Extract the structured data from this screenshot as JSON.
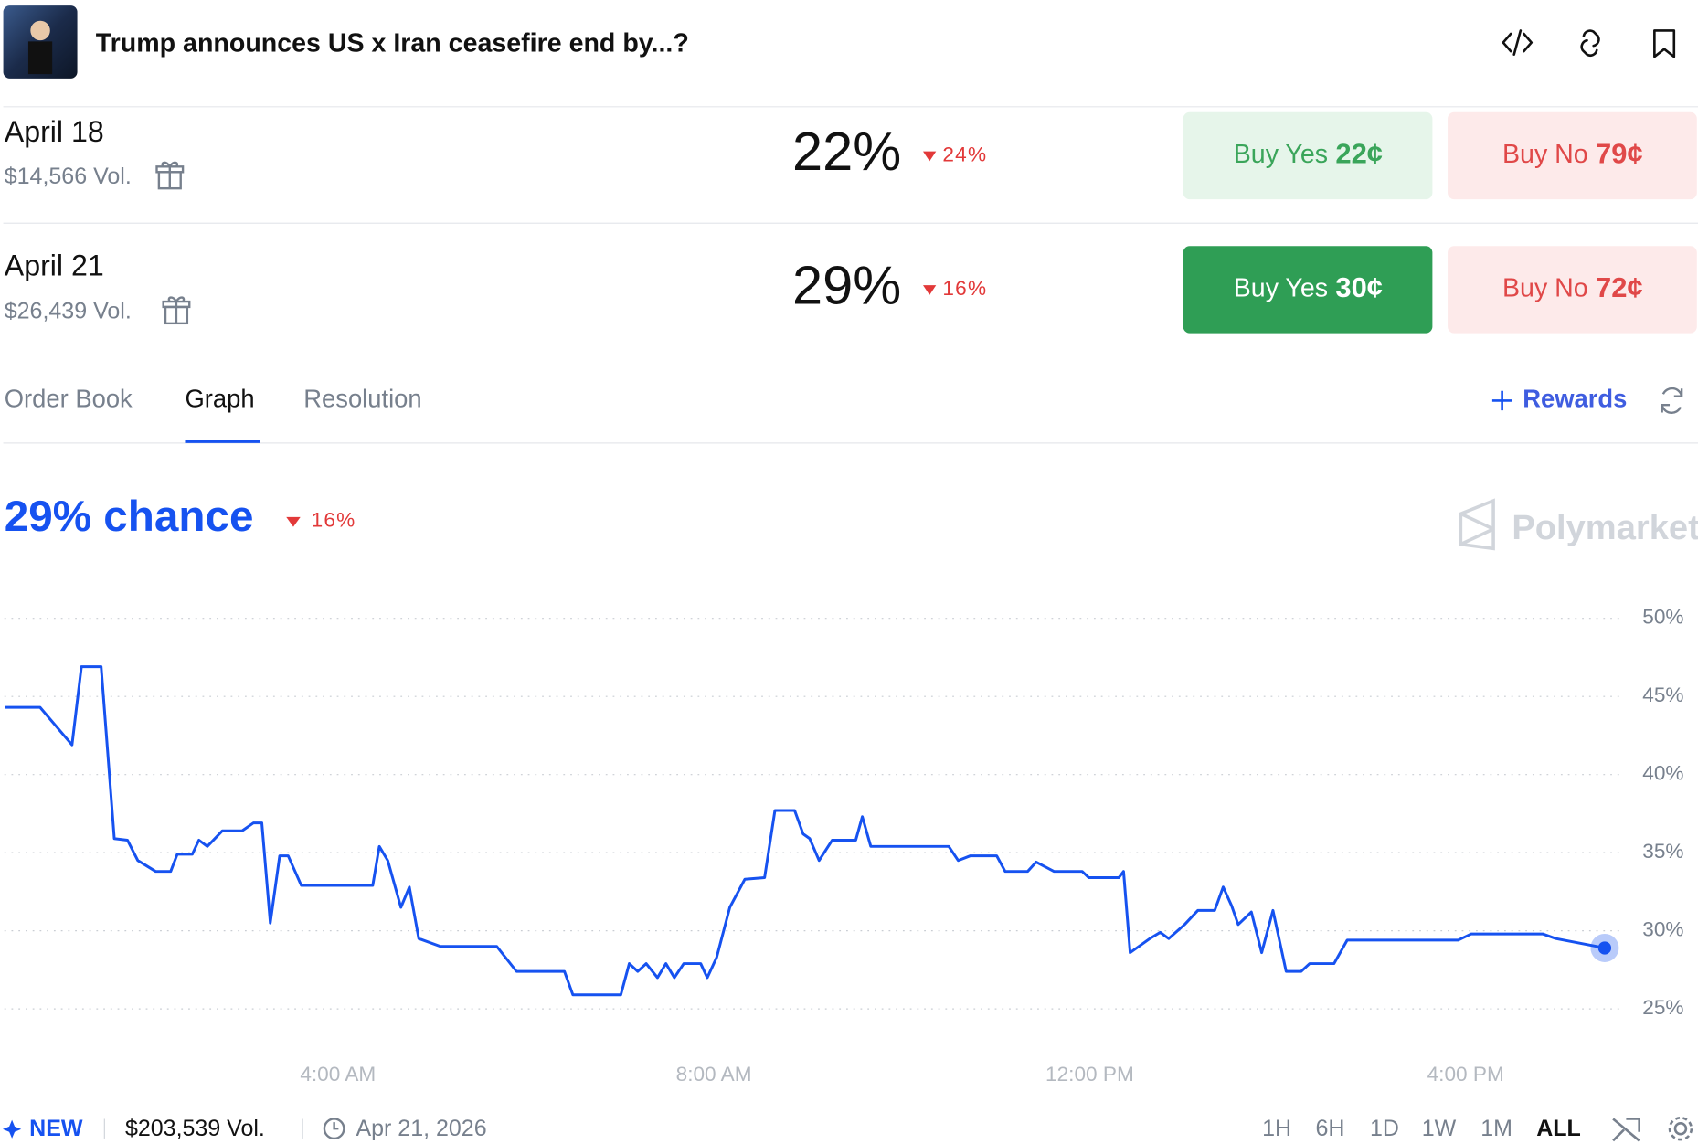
{
  "header": {
    "title": "Trump announces US x Iran ceasefire end by...?"
  },
  "markets": [
    {
      "name": "April 18",
      "volume": "$14,566 Vol.",
      "chance": "22%",
      "change": "24%",
      "buy_yes": "Buy Yes",
      "yes_price": "22¢",
      "buy_no": "Buy No",
      "no_price": "79¢"
    },
    {
      "name": "April 21",
      "volume": "$26,439 Vol.",
      "chance": "29%",
      "change": "16%",
      "buy_yes": "Buy Yes",
      "yes_price": "30¢",
      "buy_no": "Buy No",
      "no_price": "72¢"
    }
  ],
  "tabs": [
    "Order Book",
    "Graph",
    "Resolution"
  ],
  "rewards": "Rewards",
  "graph": {
    "type": "line",
    "headline": "29% chance",
    "change": "16%",
    "watermark": "Polymarket",
    "color": "#1652f0",
    "x": [
      0.46,
      0.83,
      1.17,
      1.27,
      1.48,
      1.62,
      1.76,
      1.87,
      2.06,
      2.22,
      2.29,
      2.45,
      2.52,
      2.61,
      2.77,
      2.98,
      3.1,
      3.19,
      3.28,
      3.38,
      3.47,
      3.61,
      4.37,
      4.44,
      4.53,
      4.67,
      4.76,
      4.86,
      5.09,
      5.69,
      5.9,
      6.41,
      6.5,
      7.01,
      7.1,
      7.19,
      7.28,
      7.4,
      7.49,
      7.58,
      7.68,
      7.86,
      7.93,
      8.03,
      8.17,
      8.33,
      8.54,
      8.65,
      8.86,
      8.95,
      9.02,
      9.12,
      9.26,
      9.51,
      9.58,
      9.67,
      10.5,
      10.6,
      10.73,
      11.01,
      11.1,
      11.34,
      11.43,
      11.62,
      11.92,
      11.99,
      12.31,
      12.36,
      12.43,
      12.64,
      12.75,
      12.84,
      13.01,
      13.15,
      13.33,
      13.42,
      13.51,
      13.58,
      13.72,
      13.83,
      13.95,
      14.09,
      14.25,
      14.34,
      14.6,
      14.74,
      15.92,
      16.06,
      16.82,
      16.96,
      17.48
    ],
    "values": [
      44.3,
      44.3,
      41.9,
      46.9,
      46.9,
      35.9,
      35.8,
      34.5,
      33.8,
      33.8,
      34.9,
      34.9,
      35.8,
      35.4,
      36.4,
      36.4,
      36.9,
      36.9,
      30.5,
      34.8,
      34.8,
      32.9,
      32.9,
      35.4,
      34.5,
      31.5,
      32.8,
      29.5,
      29.0,
      29.0,
      27.4,
      27.4,
      25.9,
      25.9,
      27.9,
      27.4,
      27.9,
      27.0,
      27.9,
      27.0,
      27.9,
      27.9,
      27.0,
      28.3,
      31.5,
      33.3,
      33.4,
      37.7,
      37.7,
      36.2,
      35.9,
      34.5,
      35.8,
      35.8,
      37.3,
      35.4,
      35.4,
      34.5,
      34.8,
      34.8,
      33.8,
      33.8,
      34.4,
      33.8,
      33.8,
      33.4,
      33.4,
      33.8,
      28.6,
      29.5,
      29.9,
      29.5,
      30.4,
      31.3,
      31.3,
      32.8,
      31.6,
      30.4,
      31.2,
      28.6,
      31.3,
      27.4,
      27.4,
      27.9,
      27.9,
      29.4,
      29.4,
      29.8,
      29.8,
      29.5,
      28.9
    ],
    "xlim": [
      0.45,
      17.5
    ],
    "xticks": [
      {
        "value": 4,
        "label": "4:00 AM"
      },
      {
        "value": 8,
        "label": "8:00 AM"
      },
      {
        "value": 12,
        "label": "12:00 PM"
      },
      {
        "value": 16,
        "label": "4:00 PM"
      }
    ],
    "ylim": [
      23.5,
      51.5
    ],
    "yticks": [
      {
        "value": 25,
        "label": "25%"
      },
      {
        "value": 30,
        "label": "30%"
      },
      {
        "value": 35,
        "label": "35%"
      },
      {
        "value": 40,
        "label": "40%"
      },
      {
        "value": 45,
        "label": "45%"
      },
      {
        "value": 50,
        "label": "50%"
      }
    ],
    "grid": true
  },
  "footer": {
    "new": "NEW",
    "volume": "$203,539 Vol.",
    "date": "Apr 21, 2026",
    "ranges": [
      "1H",
      "6H",
      "1D",
      "1W",
      "1M",
      "ALL"
    ]
  }
}
